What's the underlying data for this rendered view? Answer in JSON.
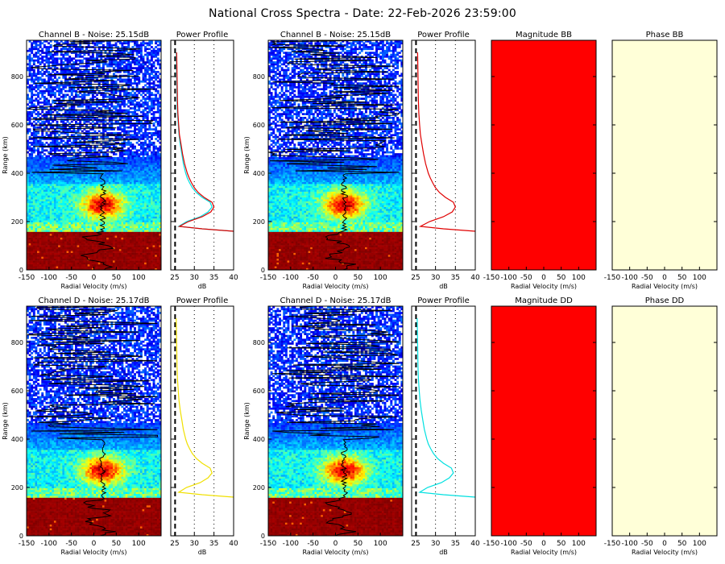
{
  "title": "National Cross Spectra - Date: 22-Feb-2026 23:59:00",
  "colors": {
    "background": "#ffffff",
    "channel_b": "#e00000",
    "channel_d": "#00e0e0",
    "profile_b": "#e00000",
    "profile_d_cyan": "#00e0e0",
    "profile_d_yellow": "#f0e000",
    "magnitude": "#ff0000",
    "phase": "#ffffd8",
    "text": "#000000"
  },
  "chart_data": [
    {
      "type": "heatmap",
      "title": "Channel B - Noise: 25.15dB",
      "xlabel": "Radial Velocity (m/s)",
      "ylabel": "Range (km)",
      "xlim": [
        -150,
        150
      ],
      "ylim": [
        0,
        950
      ],
      "xticks": [
        -150,
        -100,
        -50,
        0,
        50,
        100
      ],
      "yticks": [
        0,
        200,
        400,
        600,
        800
      ],
      "description_of_field": "spectral power vs radial velocity and range; saturated red below ~160 km, enhanced layer ~200-340 km peaking near +20 m/s",
      "overlay_line": {
        "name": "mean velocity",
        "range": [
          0,
          40,
          80,
          120,
          160,
          200,
          240,
          280,
          320,
          360,
          400,
          440,
          480,
          520,
          560,
          600,
          640,
          680,
          720,
          760,
          800,
          840,
          880,
          920
        ],
        "velocity": [
          0,
          20,
          -40,
          10,
          25,
          22,
          18,
          28,
          20,
          26,
          30,
          -10,
          90,
          -120,
          100,
          -80,
          60,
          -130,
          120,
          -60,
          80,
          -90,
          110,
          130
        ]
      }
    },
    {
      "type": "line",
      "title": "Power Profile",
      "xlabel": "dB",
      "ylabel": "",
      "xlim": [
        24,
        40
      ],
      "ylim": [
        0,
        950
      ],
      "xticks": [
        25,
        30,
        35,
        40
      ],
      "noise_level": 25.15,
      "series": [
        {
          "color": "cyan",
          "range": [
            160,
            170,
            180,
            200,
            220,
            240,
            260,
            280,
            300,
            320,
            340,
            360,
            380,
            400,
            440,
            480,
            520,
            560,
            600,
            650,
            700,
            800,
            900
          ],
          "db": [
            40,
            32,
            26,
            28,
            31.5,
            33.5,
            34.5,
            34,
            32,
            30.5,
            29.5,
            28.8,
            28.2,
            27.8,
            27.2,
            26.8,
            26.4,
            26.1,
            25.9,
            25.7,
            25.6,
            25.5,
            25.4
          ]
        },
        {
          "color": "red",
          "range": [
            160,
            170,
            180,
            200,
            220,
            240,
            260,
            280,
            300,
            320,
            340,
            360,
            380,
            400,
            440,
            480,
            520,
            560,
            600,
            650,
            700,
            800,
            900
          ],
          "db": [
            40,
            32,
            26.2,
            28.5,
            32,
            34.2,
            35,
            34.5,
            32.5,
            31,
            30,
            29.3,
            28.7,
            28.2,
            27.5,
            27,
            26.6,
            26.2,
            26,
            25.8,
            25.7,
            25.6,
            25.5
          ]
        }
      ]
    },
    {
      "type": "heatmap",
      "title": "Channel B - Noise: 25.15dB",
      "xlabel": "Radial Velocity (m/s)",
      "ylabel": "Range (km)",
      "xlim": [
        -150,
        150
      ],
      "ylim": [
        0,
        950
      ],
      "xticks": [
        -150,
        -100,
        -50,
        0,
        50,
        100
      ],
      "yticks": [
        0,
        200,
        400,
        600,
        800
      ]
    },
    {
      "type": "line",
      "title": "Power Profile",
      "xlabel": "dB",
      "xlim": [
        24,
        40
      ],
      "ylim": [
        0,
        950
      ],
      "xticks": [
        25,
        30,
        35,
        40
      ],
      "series": [
        {
          "color": "red",
          "range": [
            160,
            170,
            180,
            200,
            220,
            240,
            260,
            280,
            300,
            320,
            340,
            360,
            380,
            400,
            440,
            480,
            520,
            560,
            600,
            650,
            700,
            800,
            900
          ],
          "db": [
            40,
            32,
            26.2,
            28.5,
            32,
            34.2,
            35,
            34.5,
            32.5,
            31,
            30,
            29.3,
            28.7,
            28.2,
            27.5,
            27,
            26.6,
            26.2,
            26,
            25.8,
            25.7,
            25.6,
            25.5
          ]
        }
      ]
    },
    {
      "type": "heatmap",
      "title": "Magnitude BB",
      "xlabel": "Radial Velocity (m/s)",
      "xlim": [
        -150,
        150
      ],
      "ylim": [
        0,
        950
      ],
      "xticks": [
        -150,
        -100,
        -50,
        0,
        50,
        100
      ],
      "fill": "uniform red"
    },
    {
      "type": "heatmap",
      "title": "Phase BB",
      "xlabel": "Radial Velocity (m/s)",
      "xlim": [
        -150,
        150
      ],
      "ylim": [
        0,
        950
      ],
      "xticks": [
        -150,
        -100,
        -50,
        0,
        50,
        100
      ],
      "fill": "uniform pale yellow"
    },
    {
      "type": "heatmap",
      "title": "Channel D - Noise: 25.17dB",
      "xlabel": "Radial Velocity (m/s)",
      "ylabel": "Range (km)",
      "xlim": [
        -150,
        150
      ],
      "ylim": [
        0,
        950
      ],
      "xticks": [
        -150,
        -100,
        -50,
        0,
        50,
        100
      ],
      "yticks": [
        0,
        200,
        400,
        600,
        800
      ]
    },
    {
      "type": "line",
      "title": "Power Profile",
      "xlabel": "dB",
      "xlim": [
        24,
        40
      ],
      "ylim": [
        0,
        950
      ],
      "xticks": [
        25,
        30,
        35,
        40
      ],
      "noise_level": 25.17,
      "series": [
        {
          "color": "yellow",
          "range": [
            160,
            170,
            180,
            200,
            220,
            240,
            260,
            280,
            300,
            320,
            340,
            360,
            380,
            400,
            440,
            480,
            520,
            560,
            600,
            650,
            700,
            800,
            900
          ],
          "db": [
            40,
            32,
            26,
            28,
            31.5,
            33.5,
            34.5,
            34,
            32,
            30.5,
            29.5,
            28.8,
            28.2,
            27.8,
            27.2,
            26.8,
            26.4,
            26.1,
            25.9,
            25.7,
            25.6,
            25.5,
            25.4
          ]
        }
      ]
    },
    {
      "type": "heatmap",
      "title": "Channel D - Noise: 25.17dB",
      "xlabel": "Radial Velocity (m/s)",
      "ylabel": "Range (km)",
      "xlim": [
        -150,
        150
      ],
      "ylim": [
        0,
        950
      ],
      "xticks": [
        -150,
        -100,
        -50,
        0,
        50,
        100
      ],
      "yticks": [
        0,
        200,
        400,
        600,
        800
      ]
    },
    {
      "type": "line",
      "title": "Power Profile",
      "xlabel": "dB",
      "xlim": [
        24,
        40
      ],
      "ylim": [
        0,
        950
      ],
      "xticks": [
        25,
        30,
        35,
        40
      ],
      "series": [
        {
          "color": "cyan",
          "range": [
            160,
            170,
            180,
            200,
            220,
            240,
            260,
            280,
            300,
            320,
            340,
            360,
            380,
            400,
            440,
            480,
            520,
            560,
            600,
            650,
            700,
            800,
            900
          ],
          "db": [
            40,
            32,
            26,
            28,
            31.5,
            33.5,
            34.5,
            34,
            32,
            30.5,
            29.5,
            28.8,
            28.2,
            27.8,
            27.2,
            26.8,
            26.4,
            26.1,
            25.9,
            25.7,
            25.6,
            25.5,
            25.4
          ]
        }
      ]
    },
    {
      "type": "heatmap",
      "title": "Magnitude DD",
      "xlabel": "Radial Velocity (m/s)",
      "xlim": [
        -150,
        150
      ],
      "ylim": [
        0,
        950
      ],
      "xticks": [
        -150,
        -100,
        -50,
        0,
        50,
        100
      ],
      "fill": "uniform red"
    },
    {
      "type": "heatmap",
      "title": "Phase DD",
      "xlabel": "Radial Velocity (m/s)",
      "xlim": [
        -150,
        150
      ],
      "ylim": [
        0,
        950
      ],
      "xticks": [
        -150,
        -100,
        -50,
        0,
        50,
        100
      ],
      "fill": "uniform pale yellow"
    }
  ]
}
